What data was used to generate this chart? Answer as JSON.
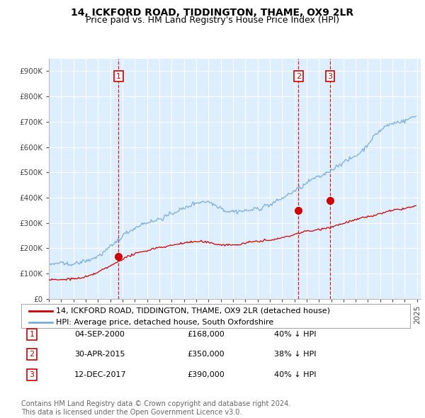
{
  "title": "14, ICKFORD ROAD, TIDDINGTON, THAME, OX9 2LR",
  "subtitle": "Price paid vs. HM Land Registry's House Price Index (HPI)",
  "ylim": [
    0,
    950000
  ],
  "yticks": [
    0,
    100000,
    200000,
    300000,
    400000,
    500000,
    600000,
    700000,
    800000,
    900000
  ],
  "ytick_labels": [
    "£0",
    "£100K",
    "£200K",
    "£300K",
    "£400K",
    "£500K",
    "£600K",
    "£700K",
    "£800K",
    "£900K"
  ],
  "hpi_color": "#7aaddc",
  "price_color": "#cc0000",
  "sale_marker_color": "#cc0000",
  "sale_label_color": "#cc0000",
  "background_color": "#ffffff",
  "plot_bg_color": "#ddeeff",
  "grid_color": "#ffffff",
  "sales": [
    {
      "date_num": 2000.67,
      "price": 168000,
      "label": "1"
    },
    {
      "date_num": 2015.33,
      "price": 350000,
      "label": "2"
    },
    {
      "date_num": 2017.92,
      "price": 390000,
      "label": "3"
    }
  ],
  "legend_entries": [
    "14, ICKFORD ROAD, TIDDINGTON, THAME, OX9 2LR (detached house)",
    "HPI: Average price, detached house, South Oxfordshire"
  ],
  "table_data": [
    [
      "1",
      "04-SEP-2000",
      "£168,000",
      "40% ↓ HPI"
    ],
    [
      "2",
      "30-APR-2015",
      "£350,000",
      "38% ↓ HPI"
    ],
    [
      "3",
      "12-DEC-2017",
      "£390,000",
      "40% ↓ HPI"
    ]
  ],
  "footer": "Contains HM Land Registry data © Crown copyright and database right 2024.\nThis data is licensed under the Open Government Licence v3.0.",
  "title_fontsize": 10,
  "subtitle_fontsize": 9,
  "tick_fontsize": 7.5,
  "legend_fontsize": 8,
  "table_fontsize": 8,
  "footer_fontsize": 7
}
